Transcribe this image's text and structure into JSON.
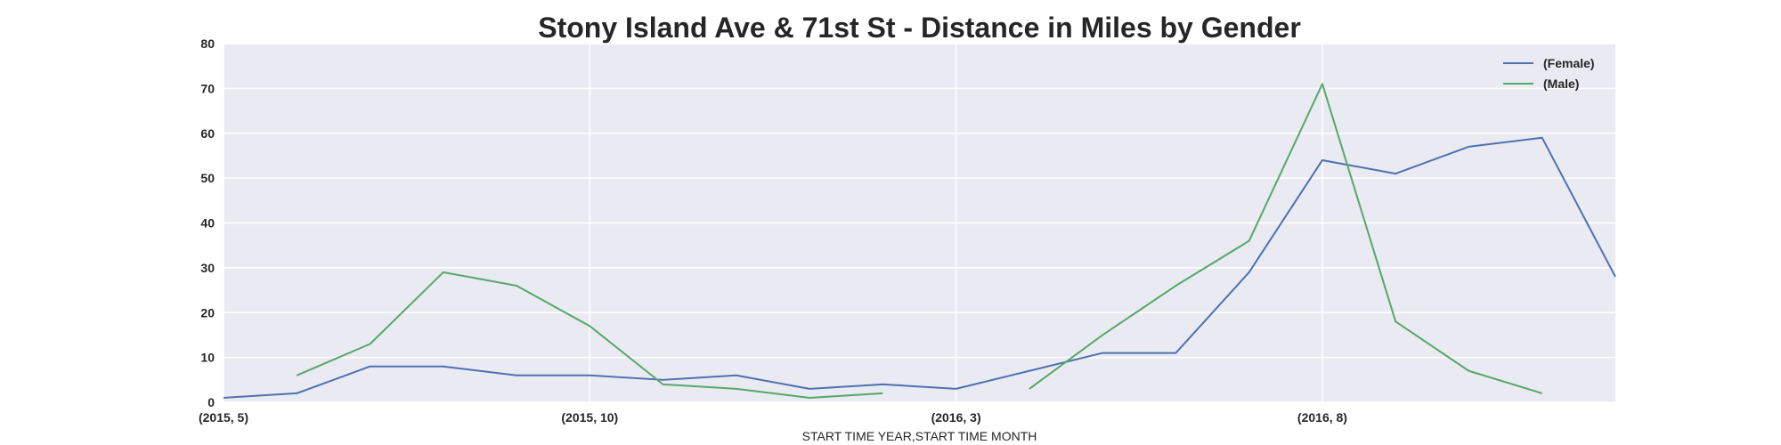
{
  "chart_data": {
    "type": "line",
    "title": "Stony Island Ave & 71st St - Distance in Miles by Gender",
    "xlabel": "START TIME YEAR,START TIME MONTH",
    "ylabel": "",
    "ylim": [
      0,
      80
    ],
    "yticks": [
      0,
      10,
      20,
      30,
      40,
      50,
      60,
      70,
      80
    ],
    "xticks": [
      {
        "index": 0,
        "label": "(2015, 5)"
      },
      {
        "index": 5,
        "label": "(2015, 10)"
      },
      {
        "index": 10,
        "label": "(2016, 3)"
      },
      {
        "index": 15,
        "label": "(2016, 8)"
      }
    ],
    "categories": [
      "(2015, 5)",
      "(2015, 6)",
      "(2015, 7)",
      "(2015, 8)",
      "(2015, 9)",
      "(2015, 10)",
      "(2015, 11)",
      "(2015, 12)",
      "(2016, 1)",
      "(2016, 2)",
      "(2016, 3)",
      "(2016, 4)",
      "(2016, 5)",
      "(2016, 6)",
      "(2016, 7)",
      "(2016, 8)",
      "(2016, 9)",
      "(2016, 10)",
      "(2016, 11)",
      "(2016, 12)"
    ],
    "series": [
      {
        "name": "(Female)",
        "color": "#4c72b0",
        "values": [
          1,
          2,
          8,
          8,
          6,
          6,
          5,
          6,
          3,
          4,
          3,
          7,
          11,
          11,
          29,
          54,
          51,
          57,
          59,
          28
        ]
      },
      {
        "name": "(Male)",
        "color": "#55a868",
        "values": [
          null,
          6,
          13,
          29,
          26,
          17,
          4,
          3,
          1,
          2,
          null,
          3,
          15,
          26,
          36,
          71,
          18,
          7,
          2,
          null
        ]
      }
    ],
    "grid": true,
    "legend_position": "top-right",
    "background_color": "#eaeaf2",
    "grid_color": "#ffffff"
  }
}
